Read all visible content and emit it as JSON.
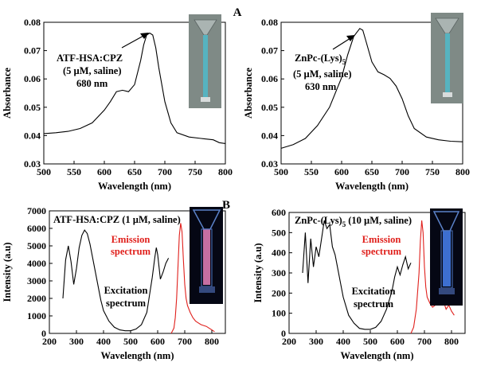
{
  "panel_labels": {
    "top": "A",
    "bottom": "B"
  },
  "chart_data": [
    {
      "type": "line",
      "title": "",
      "xlabel": "Wavelength (nm)",
      "ylabel": "Absorbance",
      "xlim": [
        500,
        800
      ],
      "ylim": [
        0.03,
        0.08
      ],
      "xticks": [
        "500",
        "550",
        "600",
        "650",
        "700",
        "750",
        "800"
      ],
      "yticks": [
        "0.03",
        "0.04",
        "0.05",
        "0.06",
        "0.07",
        "0.08"
      ],
      "annotation": [
        "ATF-HSA:CPZ",
        "(5 µM, saline)",
        "680 nm"
      ],
      "inset": "cuvette photo (blue-green solution)",
      "series": [
        {
          "color": "#000000",
          "x": [
            500,
            520,
            540,
            560,
            580,
            600,
            610,
            620,
            630,
            640,
            650,
            660,
            665,
            670,
            675,
            680,
            685,
            690,
            700,
            710,
            720,
            740,
            760,
            780,
            790,
            800
          ],
          "y": [
            0.0407,
            0.041,
            0.0415,
            0.0425,
            0.0445,
            0.049,
            0.052,
            0.0555,
            0.056,
            0.0555,
            0.058,
            0.0665,
            0.072,
            0.0755,
            0.0762,
            0.0755,
            0.071,
            0.064,
            0.052,
            0.0445,
            0.041,
            0.0395,
            0.039,
            0.0385,
            0.0375,
            0.0372
          ]
        }
      ]
    },
    {
      "type": "line",
      "title": "",
      "xlabel": "Wavelength (nm)",
      "ylabel": "Absorbance",
      "xlim": [
        500,
        800
      ],
      "ylim": [
        0.03,
        0.08
      ],
      "xticks": [
        "500",
        "550",
        "600",
        "650",
        "700",
        "750",
        "800"
      ],
      "yticks": [
        "0.03",
        "0.04",
        "0.05",
        "0.06",
        "0.07",
        "0.08"
      ],
      "annotation": [
        "ZnPc-(Lys)",
        "(5 µM, saline)",
        "630 nm"
      ],
      "annotation_subscript": "5",
      "inset": "cuvette photo (blue-green solution)",
      "series": [
        {
          "color": "#000000",
          "x": [
            500,
            520,
            540,
            560,
            580,
            600,
            610,
            620,
            630,
            635,
            640,
            650,
            660,
            670,
            680,
            690,
            700,
            710,
            720,
            740,
            760,
            780,
            800
          ],
          "y": [
            0.0355,
            0.0368,
            0.039,
            0.0435,
            0.05,
            0.0605,
            0.0685,
            0.075,
            0.0778,
            0.0772,
            0.0735,
            0.066,
            0.0625,
            0.0615,
            0.0602,
            0.0575,
            0.053,
            0.047,
            0.0425,
            0.0395,
            0.0385,
            0.038,
            0.0378
          ]
        }
      ]
    },
    {
      "type": "line",
      "title": "",
      "xlabel": "Wavelength (nm)",
      "ylabel": "Intensity (a.u)",
      "xlim": [
        200,
        850
      ],
      "ylim": [
        0,
        7000
      ],
      "xticks": [
        "200",
        "300",
        "400",
        "500",
        "600",
        "700",
        "800"
      ],
      "yticks": [
        "0",
        "1000",
        "2000",
        "3000",
        "4000",
        "5000",
        "6000",
        "7000"
      ],
      "annotation": [
        "ATF-HSA:CPZ (1 µM, saline)"
      ],
      "labels": {
        "emission": [
          "Emission",
          "spectrum"
        ],
        "excitation": [
          "Excitation",
          "spectrum"
        ]
      },
      "inset": "fluorescent cuvette photo (pink emission)",
      "series": [
        {
          "color": "#000000",
          "x": [
            250,
            260,
            270,
            280,
            290,
            300,
            310,
            320,
            330,
            340,
            350,
            360,
            370,
            380,
            390,
            400,
            420,
            440,
            460,
            480,
            500,
            520,
            540,
            560,
            570,
            580,
            590,
            595,
            600,
            605,
            610,
            620,
            630,
            640
          ],
          "y": [
            2000,
            4200,
            5000,
            4100,
            2800,
            3700,
            4900,
            5600,
            5900,
            5700,
            5100,
            4300,
            3500,
            2700,
            1900,
            1300,
            700,
            350,
            200,
            150,
            150,
            250,
            500,
            1200,
            2200,
            3200,
            4400,
            4900,
            4500,
            3800,
            3100,
            3500,
            4000,
            4300
          ]
        },
        {
          "color": "#e0201c",
          "x": [
            650,
            660,
            665,
            670,
            675,
            680,
            685,
            690,
            695,
            700,
            705,
            710,
            720,
            730,
            740,
            750,
            760,
            770,
            780,
            790,
            800,
            810
          ],
          "y": [
            0,
            300,
            900,
            2000,
            3800,
            5600,
            6300,
            5800,
            4200,
            2800,
            2000,
            1600,
            1200,
            900,
            700,
            600,
            500,
            450,
            400,
            300,
            200,
            100
          ]
        }
      ]
    },
    {
      "type": "line",
      "title": "",
      "xlabel": "Wavelength (nm)",
      "ylabel": "Intensity (a.u)",
      "xlim": [
        200,
        850
      ],
      "ylim": [
        0,
        600
      ],
      "xticks": [
        "200",
        "300",
        "400",
        "500",
        "600",
        "700",
        "800"
      ],
      "yticks": [
        "0",
        "100",
        "200",
        "300",
        "400",
        "500",
        "600"
      ],
      "annotation": [
        "ZnPc-(Lys)",
        "(10 µM, saline)"
      ],
      "annotation_subscript": "5",
      "labels": {
        "emission": [
          "Emission",
          "spectrum"
        ],
        "excitation": [
          "Excitation",
          "spectrum"
        ]
      },
      "inset": "fluorescent cuvette photo (blue emission)",
      "series": [
        {
          "color": "#000000",
          "x": [
            250,
            260,
            270,
            280,
            290,
            300,
            310,
            320,
            330,
            340,
            350,
            360,
            370,
            380,
            390,
            400,
            420,
            440,
            460,
            480,
            500,
            520,
            540,
            560,
            580,
            590,
            600,
            610,
            620,
            630,
            640,
            650
          ],
          "y": [
            300,
            500,
            250,
            470,
            330,
            430,
            380,
            470,
            560,
            520,
            540,
            430,
            390,
            320,
            250,
            180,
            90,
            50,
            25,
            20,
            20,
            30,
            60,
            120,
            210,
            280,
            330,
            290,
            340,
            380,
            320,
            350
          ]
        },
        {
          "color": "#e0201c",
          "x": [
            650,
            660,
            670,
            680,
            685,
            690,
            695,
            700,
            705,
            710,
            720,
            730,
            740,
            750,
            760,
            770,
            780,
            790,
            800,
            810
          ],
          "y": [
            0,
            30,
            120,
            300,
            460,
            560,
            500,
            330,
            230,
            180,
            150,
            130,
            140,
            170,
            150,
            160,
            120,
            140,
            110,
            90
          ]
        }
      ]
    }
  ]
}
